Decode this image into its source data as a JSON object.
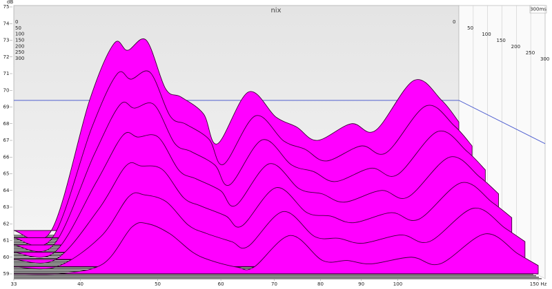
{
  "chart_data": {
    "type": "waterfall",
    "title": "nix",
    "y_unit": "dB",
    "depth_label": "300ms",
    "x": [
      33,
      37.5,
      42.7,
      46.4,
      48.6,
      51.8,
      55.3,
      58.3,
      62.9,
      66,
      73.3,
      80.5,
      86.4,
      92.7,
      104,
      113,
      128.8,
      141.5,
      150
    ],
    "series": [
      {
        "name": "0",
        "color": "#ff00ff",
        "values": [
          59,
          59,
          66.8,
          70.2,
          69.8,
          70.4,
          67.5,
          67.0,
          66.0,
          64.2,
          67.3,
          65.8,
          65.2,
          64.4,
          65.4,
          65.0,
          68.0,
          66.8,
          65.5
        ]
      },
      {
        "name": "50",
        "color": "#ff00ff",
        "values": [
          59,
          59,
          65.6,
          68.8,
          68.5,
          68.9,
          66.3,
          65.8,
          64.9,
          63.4,
          66.3,
          64.8,
          64.3,
          63.6,
          64.5,
          64.1,
          66.9,
          65.7,
          64.5
        ]
      },
      {
        "name": "100",
        "color": "#ff00ff",
        "values": [
          59,
          59,
          64.4,
          67.4,
          67.2,
          67.4,
          65.1,
          64.6,
          63.8,
          62.6,
          65.3,
          63.8,
          63.4,
          62.8,
          63.6,
          63.2,
          65.8,
          64.6,
          63.5
        ]
      },
      {
        "name": "150",
        "color": "#ff00ff",
        "values": [
          59,
          59,
          63.2,
          66.0,
          65.9,
          65.9,
          63.9,
          63.4,
          62.7,
          61.8,
          64.3,
          62.8,
          62.5,
          62.0,
          62.7,
          62.3,
          64.7,
          63.5,
          62.5
        ]
      },
      {
        "name": "200",
        "color": "#ff00ff",
        "values": [
          59,
          59,
          62.0,
          64.6,
          64.6,
          64.4,
          62.7,
          62.2,
          61.6,
          61.0,
          63.3,
          61.8,
          61.6,
          61.2,
          61.8,
          61.4,
          63.6,
          62.4,
          61.5
        ]
      },
      {
        "name": "250",
        "color": "#ff00ff",
        "values": [
          59,
          59,
          60.8,
          63.2,
          63.3,
          62.9,
          61.5,
          61.0,
          60.5,
          60.2,
          62.3,
          60.8,
          60.7,
          60.4,
          60.9,
          60.5,
          62.5,
          61.3,
          60.5
        ]
      },
      {
        "name": "300",
        "color": "#ff00ff",
        "values": [
          59,
          59,
          59.6,
          61.8,
          62.0,
          61.4,
          60.3,
          59.8,
          59.4,
          59.4,
          61.3,
          59.8,
          59.8,
          59.6,
          60.0,
          59.6,
          61.4,
          60.2,
          59.5
        ]
      }
    ],
    "xlim": [
      33,
      150
    ],
    "xticks": [
      33,
      40,
      50,
      60,
      70,
      80,
      90,
      100,
      {
        "value": 150,
        "label": "150 Hz"
      }
    ],
    "log_x": true,
    "ylim": [
      59,
      75
    ],
    "yticks": [
      59,
      60,
      61,
      62,
      63,
      64,
      65,
      66,
      67,
      68,
      69,
      70,
      71,
      72,
      73,
      74,
      75
    ],
    "reference_level": 66.8,
    "reference_color": "#5060d0"
  }
}
